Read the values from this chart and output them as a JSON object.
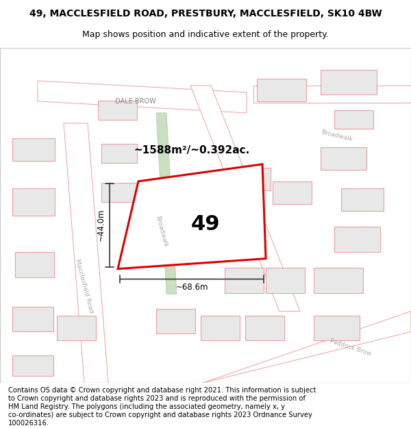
{
  "title_line1": "49, MACCLESFIELD ROAD, PRESTBURY, MACCLESFIELD, SK10 4BW",
  "title_line2": "Map shows position and indicative extent of the property.",
  "footer_lines": [
    "Contains OS data © Crown copyright and database right 2021. This information is subject",
    "to Crown copyright and database rights 2023 and is reproduced with the permission of",
    "HM Land Registry. The polygons (including the associated geometry, namely x, y",
    "co-ordinates) are subject to Crown copyright and database rights 2023 Ordnance Survey",
    "100026316."
  ],
  "area_label": "~1588m²/~0.392ac.",
  "number_label": "49",
  "dim_width": "~68.6m",
  "dim_height": "~44.0m",
  "map_bg": "#f2ede8",
  "road_fill": "#ffffff",
  "road_stroke": "#e8a0a0",
  "building_fill": "#e8e8e8",
  "building_stroke": "#e8a0a0",
  "green_fill": "#c8dfc0",
  "green_stroke": "#b0c8a8",
  "highlight_stroke": "#dd0000",
  "highlight_fill": "#ffffff",
  "dim_color": "#333333",
  "road_label_color": "#aaaaaa",
  "dale_brow_color": "#888888",
  "title_fontsize": 10,
  "subtitle_fontsize": 9,
  "footer_fontsize": 7.2,
  "area_fontsize": 11,
  "number_fontsize": 22,
  "road_label_fontsize": 6.5,
  "dale_brow_fontsize": 7
}
